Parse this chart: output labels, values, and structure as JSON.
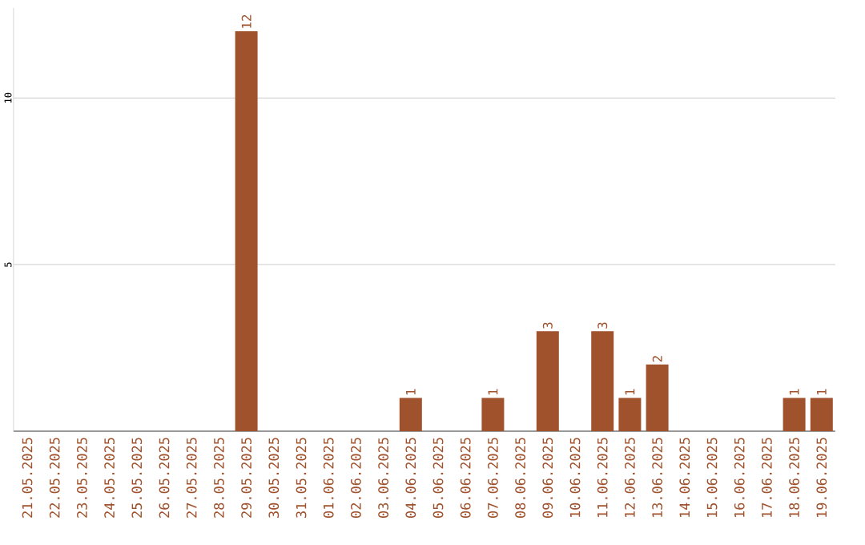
{
  "chart_data": {
    "type": "bar",
    "categories": [
      "21.05.2025",
      "22.05.2025",
      "23.05.2025",
      "24.05.2025",
      "25.05.2025",
      "26.05.2025",
      "27.05.2025",
      "28.05.2025",
      "29.05.2025",
      "30.05.2025",
      "31.05.2025",
      "01.06.2025",
      "02.06.2025",
      "03.06.2025",
      "04.06.2025",
      "05.06.2025",
      "06.06.2025",
      "07.06.2025",
      "08.06.2025",
      "09.06.2025",
      "10.06.2025",
      "11.06.2025",
      "12.06.2025",
      "13.06.2025",
      "14.06.2025",
      "15.06.2025",
      "16.06.2025",
      "17.06.2025",
      "18.06.2025",
      "19.06.2025"
    ],
    "values": [
      0,
      0,
      0,
      0,
      0,
      0,
      0,
      0,
      12,
      0,
      0,
      0,
      0,
      0,
      1,
      0,
      0,
      1,
      0,
      3,
      0,
      3,
      1,
      2,
      0,
      0,
      0,
      0,
      1,
      1
    ],
    "value_labels": [
      null,
      null,
      null,
      null,
      null,
      null,
      null,
      null,
      "12",
      null,
      null,
      null,
      null,
      null,
      "1",
      null,
      null,
      "1",
      null,
      "3",
      null,
      "3",
      "1",
      "2",
      null,
      null,
      null,
      null,
      "1",
      "1"
    ],
    "color": "#a0522d",
    "ylim": [
      0,
      12.7
    ],
    "yticks": [
      5,
      10
    ],
    "grid": "y"
  }
}
